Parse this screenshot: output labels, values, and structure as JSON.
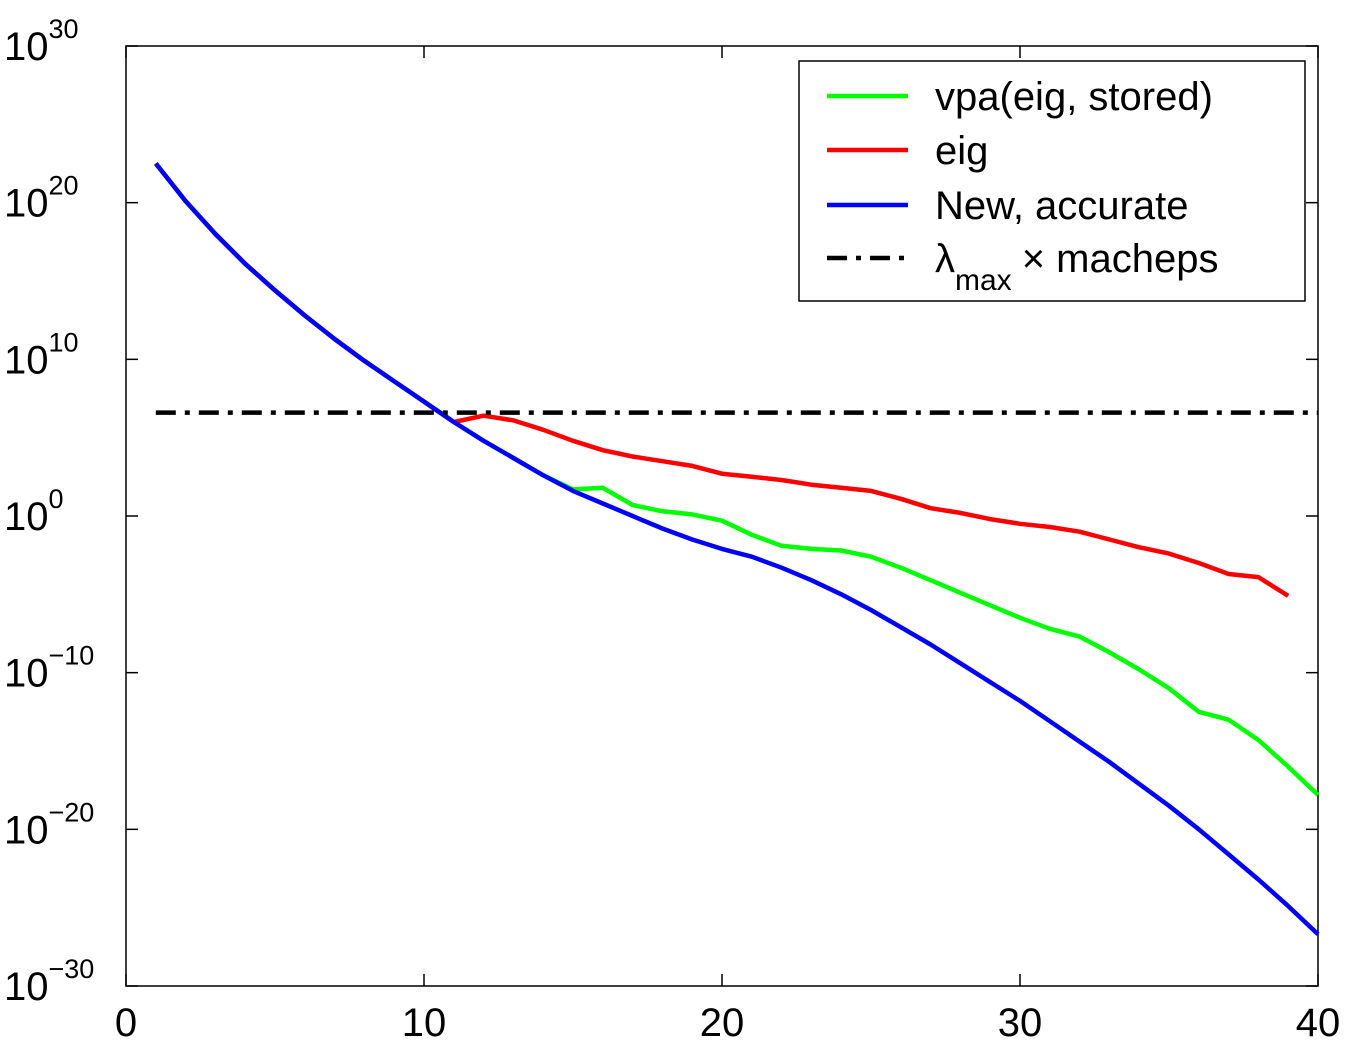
{
  "chart_data": {
    "type": "line",
    "y_scale": "log",
    "xlim": [
      0,
      40
    ],
    "ylim_exponent": [
      -30,
      30
    ],
    "x_ticks": [
      "0",
      "10",
      "20",
      "30",
      "40"
    ],
    "y_ticks": [
      {
        "base": "10",
        "exp": "30",
        "value": 30
      },
      {
        "base": "10",
        "exp": "20",
        "value": 20
      },
      {
        "base": "10",
        "exp": "10",
        "value": 10
      },
      {
        "base": "10",
        "exp": "0",
        "value": 0
      },
      {
        "base": "10",
        "exp": "−10",
        "value": -10
      },
      {
        "base": "10",
        "exp": "−20",
        "value": -20
      },
      {
        "base": "10",
        "exp": "−30",
        "value": -30
      }
    ],
    "grid": false,
    "legend_position": "top-right",
    "series": [
      {
        "name": "vpa(eig, stored)",
        "color": "#00ff00",
        "style": "solid",
        "x": [
          1,
          2,
          3,
          4,
          5,
          6,
          7,
          8,
          9,
          10,
          11,
          12,
          13,
          14,
          15,
          16,
          17,
          18,
          19,
          20,
          21,
          22,
          23,
          24,
          25,
          26,
          27,
          28,
          29,
          30,
          31,
          32,
          33,
          34,
          35,
          36,
          37,
          38,
          39,
          40
        ],
        "log10_y": [
          22.5,
          20.1,
          18.0,
          16.1,
          14.4,
          12.8,
          11.3,
          9.9,
          8.6,
          7.3,
          6.0,
          4.8,
          3.7,
          2.6,
          1.7,
          1.8,
          0.7,
          0.3,
          0.1,
          -0.3,
          -1.2,
          -1.9,
          -2.1,
          -2.2,
          -2.6,
          -3.3,
          -4.1,
          -4.9,
          -5.7,
          -6.5,
          -7.2,
          -7.7,
          -8.7,
          -9.8,
          -11.0,
          -12.5,
          -13.0,
          -14.3,
          -16.0,
          -17.8
        ]
      },
      {
        "name": "eig",
        "color": "#ff0000",
        "style": "solid",
        "x": [
          1,
          2,
          3,
          4,
          5,
          6,
          7,
          8,
          9,
          10,
          11,
          12,
          13,
          14,
          15,
          16,
          17,
          18,
          19,
          20,
          21,
          22,
          23,
          24,
          25,
          26,
          27,
          28,
          29,
          30,
          31,
          32,
          33,
          34,
          35,
          36,
          37,
          38,
          39
        ],
        "log10_y": [
          22.5,
          20.1,
          18.0,
          16.1,
          14.4,
          12.8,
          11.3,
          9.9,
          8.6,
          7.3,
          6.0,
          6.4,
          6.1,
          5.5,
          4.8,
          4.2,
          3.8,
          3.5,
          3.2,
          2.7,
          2.5,
          2.3,
          2.0,
          1.8,
          1.6,
          1.1,
          0.5,
          0.2,
          -0.2,
          -0.5,
          -0.7,
          -1.0,
          -1.5,
          -2.0,
          -2.4,
          -3.0,
          -3.7,
          -3.9,
          -5.1
        ]
      },
      {
        "name": "New, accurate",
        "color": "#0000ff",
        "style": "solid",
        "x": [
          1,
          2,
          3,
          4,
          5,
          6,
          7,
          8,
          9,
          10,
          11,
          12,
          13,
          14,
          15,
          16,
          17,
          18,
          19,
          20,
          21,
          22,
          23,
          24,
          25,
          26,
          27,
          28,
          29,
          30,
          31,
          32,
          33,
          34,
          35,
          36,
          37,
          38,
          39,
          40
        ],
        "log10_y": [
          22.5,
          20.1,
          18.0,
          16.1,
          14.4,
          12.8,
          11.3,
          9.9,
          8.6,
          7.3,
          6.0,
          4.8,
          3.7,
          2.6,
          1.6,
          0.8,
          0.0,
          -0.8,
          -1.5,
          -2.1,
          -2.6,
          -3.3,
          -4.1,
          -5.0,
          -6.0,
          -7.1,
          -8.2,
          -9.4,
          -10.6,
          -11.8,
          -13.1,
          -14.4,
          -15.7,
          -17.1,
          -18.5,
          -20.0,
          -21.6,
          -23.2,
          -24.9,
          -26.7
        ]
      },
      {
        "name_base": "λ",
        "name_sub": "max",
        "name_tail": "× macheps",
        "color": "#000000",
        "style": "dash-dot",
        "x": [
          1,
          40
        ],
        "log10_y": [
          6.6,
          6.6
        ]
      }
    ]
  }
}
